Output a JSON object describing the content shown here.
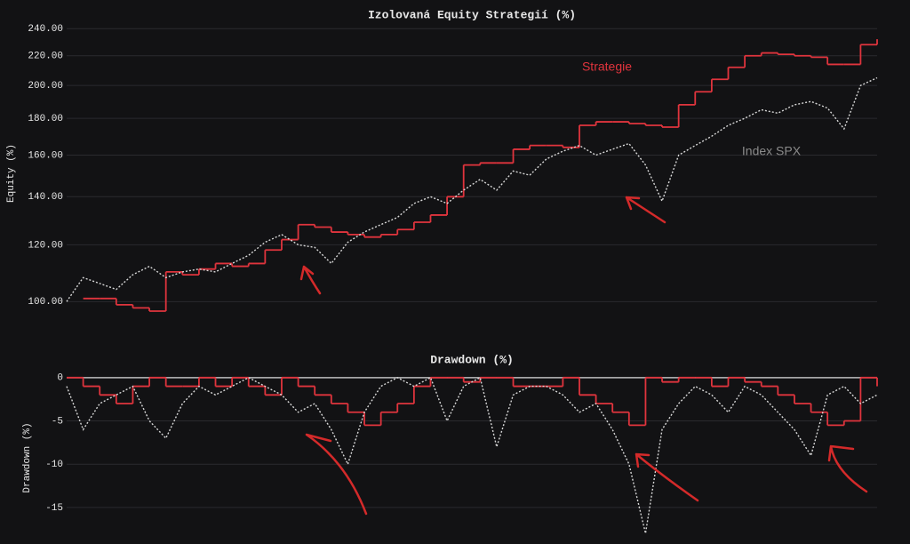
{
  "chart_data": [
    {
      "type": "line",
      "title": "Izolovaná Equity Strategií (%)",
      "y_label": "Equity (%)",
      "log_scale": true,
      "grid": true,
      "ylim": [
        97,
        245
      ],
      "yticks": [
        {
          "value": 100,
          "label": "100.00"
        },
        {
          "value": 120,
          "label": "120.00"
        },
        {
          "value": 140,
          "label": "140.00"
        },
        {
          "value": 160,
          "label": "160.00"
        },
        {
          "value": 180,
          "label": "180.00"
        },
        {
          "value": 200,
          "label": "200.00"
        },
        {
          "value": 220,
          "label": "220.00"
        },
        {
          "value": 240,
          "label": "240.00"
        }
      ],
      "series": [
        {
          "name": "Strategie",
          "color": "#e0343d",
          "step": true,
          "values": [
            null,
            101,
            101,
            99,
            98,
            97,
            110,
            109,
            111,
            113,
            112,
            113,
            118,
            122,
            128,
            127,
            125,
            124,
            123,
            124,
            126,
            129,
            132,
            140,
            155,
            156,
            156,
            163,
            165,
            165,
            164,
            176,
            178,
            178,
            177,
            176,
            175,
            188,
            196,
            204,
            212,
            220,
            222,
            221,
            220,
            219,
            214,
            214,
            228,
            232
          ]
        },
        {
          "name": "Index SPX",
          "color": "#d8d8d8",
          "dashed": true,
          "values": [
            100,
            108,
            106,
            104,
            109,
            112,
            108,
            110,
            111,
            110,
            113,
            116,
            121,
            124,
            120,
            119,
            113,
            121,
            125,
            128,
            131,
            137,
            140,
            137,
            143,
            148,
            143,
            152,
            150,
            158,
            162,
            165,
            160,
            163,
            166,
            155,
            138,
            160,
            165,
            170,
            176,
            180,
            185,
            183,
            188,
            190,
            186,
            174,
            200,
            205
          ]
        }
      ]
    },
    {
      "type": "line",
      "title": "Drawdown (%)",
      "y_label": "Drawdown (%)",
      "grid": true,
      "ylim": [
        -18.5,
        0.7
      ],
      "yticks": [
        0,
        -5,
        -10,
        -15
      ],
      "series": [
        {
          "color": "#e0343d",
          "step": true,
          "values": [
            0,
            -1,
            -2,
            -3,
            -1,
            0,
            -1,
            -1,
            0,
            -1,
            0,
            -1,
            -2,
            0,
            -1,
            -2,
            -3,
            -4,
            -5.5,
            -4,
            -3,
            -1,
            0,
            0,
            -0.5,
            0,
            0,
            -1,
            -1,
            -1,
            0,
            -2,
            -3,
            -4,
            -5.5,
            0,
            -0.5,
            0,
            0,
            -1,
            0,
            -0.5,
            -1,
            -2,
            -3,
            -4,
            -5.5,
            -5,
            0,
            -1
          ]
        },
        {
          "color": "#d8d8d8",
          "dashed": true,
          "values": [
            -1,
            -6,
            -3,
            -2,
            -1,
            -5,
            -7,
            -3,
            -1,
            -2,
            -1,
            0,
            -1,
            -2,
            -4,
            -3,
            -6,
            -10,
            -4,
            -1,
            0,
            -1,
            0,
            -5,
            -1,
            0,
            -8,
            -2,
            -1,
            -1,
            -2,
            -4,
            -3,
            -6,
            -10,
            -18,
            -6,
            -3,
            -1,
            -2,
            -4,
            -1,
            -2,
            -4,
            -6,
            -9,
            -2,
            -1,
            -3,
            -2
          ]
        }
      ]
    }
  ]
}
